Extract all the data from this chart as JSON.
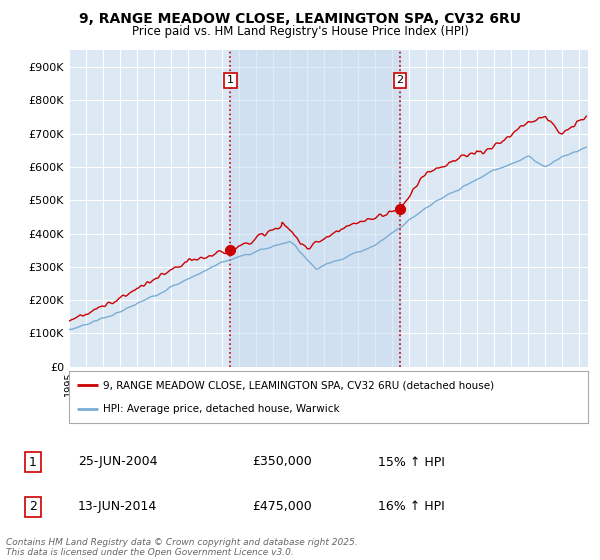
{
  "title_line1": "9, RANGE MEADOW CLOSE, LEAMINGTON SPA, CV32 6RU",
  "title_line2": "Price paid vs. HM Land Registry's House Price Index (HPI)",
  "ylim": [
    0,
    950000
  ],
  "yticks": [
    0,
    100000,
    200000,
    300000,
    400000,
    500000,
    600000,
    700000,
    800000,
    900000
  ],
  "xlim_start": 1995.0,
  "xlim_end": 2025.5,
  "plot_bg_color": "#dce9f5",
  "grid_color": "#ffffff",
  "sale1_x": 2004.48,
  "sale1_y": 350000,
  "sale1_label": "1",
  "sale2_x": 2014.45,
  "sale2_y": 475000,
  "sale2_label": "2",
  "legend_line1": "9, RANGE MEADOW CLOSE, LEAMINGTON SPA, CV32 6RU (detached house)",
  "legend_line2": "HPI: Average price, detached house, Warwick",
  "annotation1_date": "25-JUN-2004",
  "annotation1_price": "£350,000",
  "annotation1_hpi": "15% ↑ HPI",
  "annotation2_date": "13-JUN-2014",
  "annotation2_price": "£475,000",
  "annotation2_hpi": "16% ↑ HPI",
  "footer": "Contains HM Land Registry data © Crown copyright and database right 2025.\nThis data is licensed under the Open Government Licence v3.0.",
  "line_color_red": "#cc0000",
  "line_color_blue": "#7aadd4",
  "shade_color": "#c5d9ee"
}
